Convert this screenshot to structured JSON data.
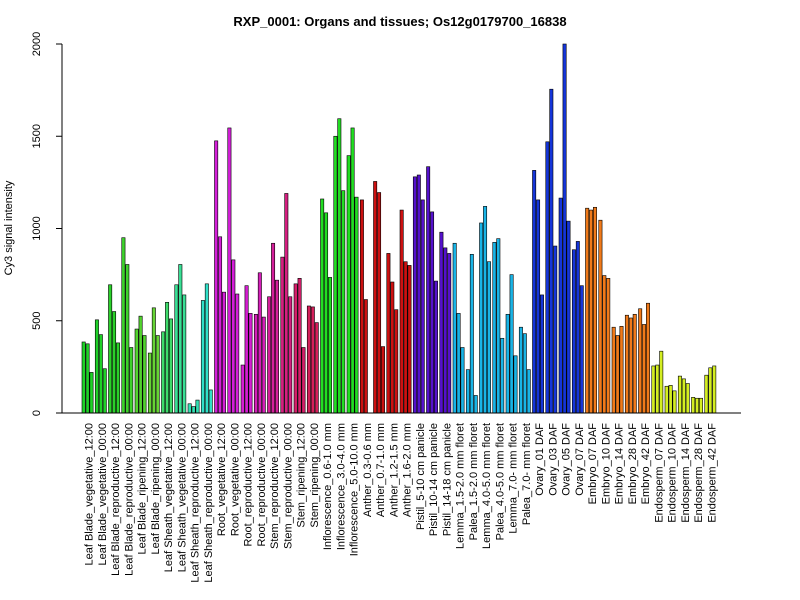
{
  "chart_data": {
    "type": "bar",
    "title": "RXP_0001: Organs and tissues; Os12g0179700_16838",
    "xlabel": "",
    "ylabel": "Cy3 signal intensity",
    "ylim": [
      0,
      2000
    ],
    "yticks": [
      0,
      500,
      1000,
      1500,
      2000
    ],
    "grid": false,
    "legend": "none",
    "groups": [
      {
        "label": "Leaf Blade_vegetative_12:00",
        "color": "#1fd128",
        "values": [
          385,
          375,
          220
        ]
      },
      {
        "label": "Leaf Blade_vegetative_00:00",
        "color": "#1fd128",
        "values": [
          505,
          425,
          240
        ]
      },
      {
        "label": "Leaf Blade_reproductive_12:00",
        "color": "#2bd12a",
        "values": [
          695,
          550,
          380
        ]
      },
      {
        "label": "Leaf Blade_reproductive_00:00",
        "color": "#3ed12c",
        "values": [
          950,
          805,
          355
        ]
      },
      {
        "label": "Leaf Blade_ripening_12:00",
        "color": "#53d32f",
        "values": [
          455,
          525,
          420
        ]
      },
      {
        "label": "Leaf Blade_ripening_00:00",
        "color": "#66d435",
        "values": [
          325,
          570,
          420
        ]
      },
      {
        "label": "Leaf Sheath_vegetative_12:00",
        "color": "#3edb6a",
        "values": [
          440,
          600,
          510
        ]
      },
      {
        "label": "Leaf Sheath_vegetative_00:00",
        "color": "#3adf95",
        "values": [
          695,
          805,
          640
        ]
      },
      {
        "label": "Leaf Sheath_reproductive_12:00",
        "color": "#33e0b4",
        "values": [
          50,
          35,
          70
        ]
      },
      {
        "label": "Leaf Sheath_reproductive_00:00",
        "color": "#30e0c8",
        "values": [
          610,
          700,
          125
        ]
      },
      {
        "label": "Root_vegetative_12:00",
        "color": "#d41fd8",
        "values": [
          1475,
          955,
          655
        ]
      },
      {
        "label": "Root_vegetative_00:00",
        "color": "#d41fd8",
        "values": [
          1545,
          830,
          645
        ]
      },
      {
        "label": "Root_reproductive_12:00",
        "color": "#d41fd1",
        "values": [
          260,
          690,
          540
        ]
      },
      {
        "label": "Root_reproductive_00:00",
        "color": "#d41fb8",
        "values": [
          535,
          760,
          520
        ]
      },
      {
        "label": "Stem_reproductive_12:00",
        "color": "#d41f9a",
        "values": [
          630,
          920,
          720
        ]
      },
      {
        "label": "Stem_reproductive_00:00",
        "color": "#d41f80",
        "values": [
          845,
          1190,
          630
        ]
      },
      {
        "label": "Stem_ripening_12:00",
        "color": "#d41f6a",
        "values": [
          700,
          730,
          355
        ]
      },
      {
        "label": "Stem_ripening_00:00",
        "color": "#d41f5a",
        "values": [
          580,
          575,
          490
        ]
      },
      {
        "label": "Inflorescence_0.6-1.0 mm",
        "color": "#22dd22",
        "values": [
          1160,
          1085,
          735
        ]
      },
      {
        "label": "Inflorescence_3.0-4.0 mm",
        "color": "#22dd22",
        "values": [
          1500,
          1595,
          1205
        ]
      },
      {
        "label": "Inflorescence_5.0-10.0 mm",
        "color": "#22dd22",
        "values": [
          1395,
          1545,
          1170
        ]
      },
      {
        "label": "Anther_0.3-0.6 mm",
        "color": "#cc1111",
        "values": [
          1155,
          615
        ]
      },
      {
        "label": "Anther_0.7-1.0 mm",
        "color": "#cc1111",
        "values": [
          1255,
          1195,
          360
        ]
      },
      {
        "label": "Anther_1.2-1.5 mm",
        "color": "#cc1111",
        "values": [
          865,
          710,
          560
        ]
      },
      {
        "label": "Anther_1.6-2.0 mm",
        "color": "#cc1111",
        "values": [
          1100,
          820,
          800
        ]
      },
      {
        "label": "Pistil_5-10 cm panicle",
        "color": "#5511cc",
        "values": [
          1280,
          1290,
          1155
        ]
      },
      {
        "label": "Pistil_10-14 cm panicle",
        "color": "#5511cc",
        "values": [
          1335,
          1090,
          715
        ]
      },
      {
        "label": "Pistil_14-18 cm panicle",
        "color": "#5511cc",
        "values": [
          980,
          895,
          865
        ]
      },
      {
        "label": "Lemma_1.5-2.0 mm floret",
        "color": "#19b4e6",
        "values": [
          920,
          540,
          355
        ]
      },
      {
        "label": "Palea_1.5-2.0 mm floret",
        "color": "#19b4e6",
        "values": [
          235,
          860,
          95
        ]
      },
      {
        "label": "Lemma_4.0-5.0 mm floret",
        "color": "#19b4e6",
        "values": [
          1030,
          1120,
          820
        ]
      },
      {
        "label": "Palea_4.0-5.0 mm floret",
        "color": "#19b4e6",
        "values": [
          925,
          945,
          405
        ]
      },
      {
        "label": "Lemma_7.0- mm floret",
        "color": "#19b4e6",
        "values": [
          535,
          750,
          310
        ]
      },
      {
        "label": "Palea_7.0- mm floret",
        "color": "#19b4e6",
        "values": [
          465,
          430,
          235
        ]
      },
      {
        "label": "Ovary_01 DAF",
        "color": "#1535d9",
        "values": [
          1315,
          1155,
          640
        ]
      },
      {
        "label": "Ovary_03 DAF",
        "color": "#1535d9",
        "values": [
          1470,
          1755,
          905
        ]
      },
      {
        "label": "Ovary_05 DAF",
        "color": "#1535d9",
        "values": [
          1165,
          2000,
          1040
        ]
      },
      {
        "label": "Ovary_07 DAF",
        "color": "#1535d9",
        "values": [
          885,
          930,
          690
        ]
      },
      {
        "label": "Embryo_07 DAF",
        "color": "#f07a1a",
        "values": [
          1110,
          1100,
          1115
        ]
      },
      {
        "label": "Embryo_10 DAF",
        "color": "#f07a1a",
        "values": [
          1045,
          745,
          730
        ]
      },
      {
        "label": "Embryo_14 DAF",
        "color": "#f07a1a",
        "values": [
          465,
          420,
          470
        ]
      },
      {
        "label": "Embryo_28 DAF",
        "color": "#f07a1a",
        "values": [
          530,
          515,
          535
        ]
      },
      {
        "label": "Embryo_42 DAF",
        "color": "#f07a1a",
        "values": [
          565,
          480,
          595
        ]
      },
      {
        "label": "Endosperm_07 DAF",
        "color": "#d4ee22",
        "values": [
          255,
          260,
          335
        ]
      },
      {
        "label": "Endosperm_10 DAF",
        "color": "#d4ee22",
        "values": [
          145,
          150,
          120
        ]
      },
      {
        "label": "Endosperm_14 DAF",
        "color": "#d4ee22",
        "values": [
          200,
          185,
          160
        ]
      },
      {
        "label": "Endosperm_28 DAF",
        "color": "#d4ee22",
        "values": [
          85,
          80,
          80
        ]
      },
      {
        "label": "Endosperm_42 DAF",
        "color": "#d4ee22",
        "values": [
          205,
          245,
          255
        ]
      }
    ],
    "xtick_labels": [
      "Leaf Blade_vegetative_12:00",
      "Leaf Blade_vegetative_00:00",
      "Leaf Blade_reproductive_12:00",
      "Leaf Blade_reproductive_00:00",
      "Leaf Blade_ripening_12:00",
      "Leaf Blade_ripening_00:00",
      "Leaf Sheath_vegetative_12:00",
      "Leaf Sheath_vegetative_00:00",
      "Leaf Sheath_reproductive_12:00",
      "Leaf Sheath_reproductive_00:00",
      "Root_vegetative_12:00",
      "Root_vegetative_00:00",
      "Root_reproductive_12:00",
      "Root_reproductive_00:00",
      "Stem_reproductive_12:00",
      "Stem_reproductive_00:00",
      "Stem_ripening_12:00",
      "Stem_ripening_00:00",
      "Inflorescence_0.6-1.0 mm",
      "Inflorescence_3.0-4.0 mm",
      "Inflorescence_5.0-10.0 mm",
      "Anther_0.3-0.6 mm",
      "Anther_0.7-1.0 mm",
      "Anther_1.2-1.5 mm",
      "Anther_1.6-2.0 mm",
      "Pistil_5-10 cm panicle",
      "Pistil_10-14 cm panicle",
      "Pistil_14-18 cm panicle",
      "Lemma_1.5-2.0 mm floret",
      "Palea_1.5-2.0 mm floret",
      "Lemma_4.0-5.0 mm floret",
      "Palea_4.0-5.0 mm floret",
      "Lemma_7.0- mm floret",
      "Palea_7.0- mm floret",
      "Ovary_01 DAF",
      "Ovary_03 DAF",
      "Ovary_05 DAF",
      "Ovary_07 DAF",
      "Embryo_07 DAF",
      "Embryo_10 DAF",
      "Embryo_14 DAF",
      "Embryo_28 DAF",
      "Embryo_42 DAF",
      "Endosperm_07 DAF",
      "Endosperm_10 DAF",
      "Endosperm_14 DAF",
      "Endosperm_28 DAF",
      "Endosperm_42 DAF"
    ]
  }
}
